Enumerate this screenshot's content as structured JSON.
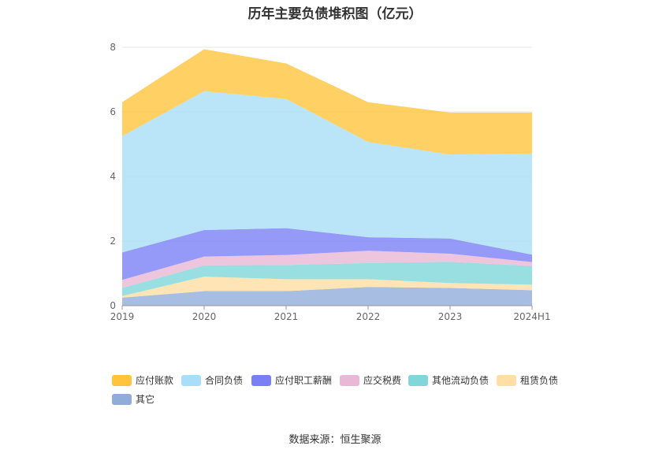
{
  "chart_data": {
    "type": "area",
    "title": "历年主要负债堆积图（亿元）",
    "categories": [
      "2019",
      "2020",
      "2021",
      "2022",
      "2023",
      "2024H1"
    ],
    "ylim": [
      0,
      8
    ],
    "yticks": [
      "0",
      "2",
      "4",
      "6",
      "8"
    ],
    "stacked": true,
    "grid": true,
    "legend_position": "bottom",
    "series": [
      {
        "name": "其它",
        "color": "#91acd9",
        "values": [
          0.25,
          0.45,
          0.45,
          0.58,
          0.55,
          0.48
        ]
      },
      {
        "name": "租赁负债",
        "color": "#ffdfa3",
        "values": [
          0.05,
          0.45,
          0.37,
          0.24,
          0.15,
          0.17
        ]
      },
      {
        "name": "其他流动负债",
        "color": "#80d6d9",
        "values": [
          0.25,
          0.35,
          0.44,
          0.5,
          0.66,
          0.58
        ]
      },
      {
        "name": "应交税费",
        "color": "#e9b8d6",
        "values": [
          0.25,
          0.27,
          0.31,
          0.38,
          0.25,
          0.12
        ]
      },
      {
        "name": "应付职工薪酬",
        "color": "#7b7ff5",
        "values": [
          0.85,
          0.82,
          0.83,
          0.42,
          0.47,
          0.23
        ]
      },
      {
        "name": "合同负债",
        "color": "#a9def8",
        "values": [
          3.6,
          4.3,
          4.0,
          2.95,
          2.6,
          3.13
        ]
      },
      {
        "name": "应付账款",
        "color": "#ffc43c",
        "values": [
          1.05,
          1.3,
          1.1,
          1.23,
          1.3,
          1.27
        ]
      }
    ],
    "legend_order": [
      "应付账款",
      "合同负债",
      "应付职工薪酬",
      "应交税费",
      "其他流动负债",
      "租赁负债",
      "其它"
    ]
  },
  "source": "数据来源：恒生聚源"
}
